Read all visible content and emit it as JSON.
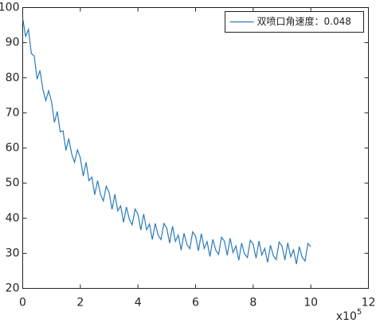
{
  "chart_data": {
    "type": "line",
    "x_offset_text": "x10",
    "x_offset_exponent": "5",
    "x": [
      0,
      0.1,
      0.2,
      0.3,
      0.4,
      0.5,
      0.6,
      0.7,
      0.8,
      0.9,
      1,
      1.1,
      1.2,
      1.3,
      1.4,
      1.5,
      1.6,
      1.7,
      1.8,
      1.9,
      2,
      2.1,
      2.2,
      2.3,
      2.4,
      2.5,
      2.6,
      2.7,
      2.8,
      2.9,
      3,
      3.1,
      3.2,
      3.3,
      3.4,
      3.5,
      3.6,
      3.7,
      3.8,
      3.9,
      4,
      4.1,
      4.2,
      4.3,
      4.4,
      4.5,
      4.6,
      4.7,
      4.8,
      4.9,
      5,
      5.1,
      5.2,
      5.3,
      5.4,
      5.5,
      5.6,
      5.7,
      5.8,
      5.9,
      6,
      6.1,
      6.2,
      6.3,
      6.4,
      6.5,
      6.6,
      6.7,
      6.8,
      6.9,
      7,
      7.1,
      7.2,
      7.3,
      7.4,
      7.5,
      7.6,
      7.7,
      7.8,
      7.9,
      8,
      8.1,
      8.2,
      8.3,
      8.4,
      8.5,
      8.6,
      8.7,
      8.8,
      8.9,
      9,
      9.1,
      9.2,
      9.3,
      9.4,
      9.5,
      9.6,
      9.7,
      9.8,
      9.9,
      10
    ],
    "series": [
      {
        "name": "双喷口角速度：0.048",
        "color": "#2b7bba",
        "values": [
          97,
          91.8,
          93.8,
          86.9,
          86.2,
          79.6,
          82.1,
          76.7,
          73.5,
          76.3,
          73.2,
          67.3,
          70.4,
          64.6,
          64.9,
          59.3,
          62.7,
          58.3,
          55.9,
          59.5,
          57.2,
          52.0,
          55.9,
          50.7,
          51.7,
          46.7,
          50.7,
          46.8,
          44.9,
          49.1,
          47.3,
          42.5,
          46.8,
          42.1,
          43.5,
          38.8,
          43.2,
          39.7,
          38.1,
          42.6,
          41.1,
          36.6,
          41.2,
          36.7,
          38.3,
          33.9,
          38.5,
          35.2,
          33.9,
          38.5,
          37.2,
          32.9,
          37.7,
          33.4,
          35.2,
          30.9,
          35.7,
          32.5,
          31.3,
          36.1,
          34.9,
          30.7,
          35.6,
          31.4,
          33.3,
          29.1,
          34.0,
          30.9,
          29.7,
          34.6,
          33.5,
          29.4,
          34.3,
          30.2,
          32.1,
          28.0,
          32.9,
          29.8,
          28.8,
          33.7,
          32.6,
          28.6,
          33.5,
          29.5,
          31.4,
          27.4,
          32.3,
          29.3,
          28.2,
          33.2,
          32.1,
          28.1,
          33.0,
          29.0,
          31.0,
          26.9,
          31.9,
          28.9,
          27.8,
          32.8,
          31.8
        ]
      }
    ],
    "xlim": [
      0,
      12
    ],
    "xticks": [
      0,
      2,
      4,
      6,
      8,
      10,
      12
    ],
    "ylim": [
      20,
      100
    ],
    "yticks": [
      20,
      30,
      40,
      50,
      60,
      70,
      80,
      90,
      100
    ],
    "grid": false,
    "legend": "upper right"
  }
}
